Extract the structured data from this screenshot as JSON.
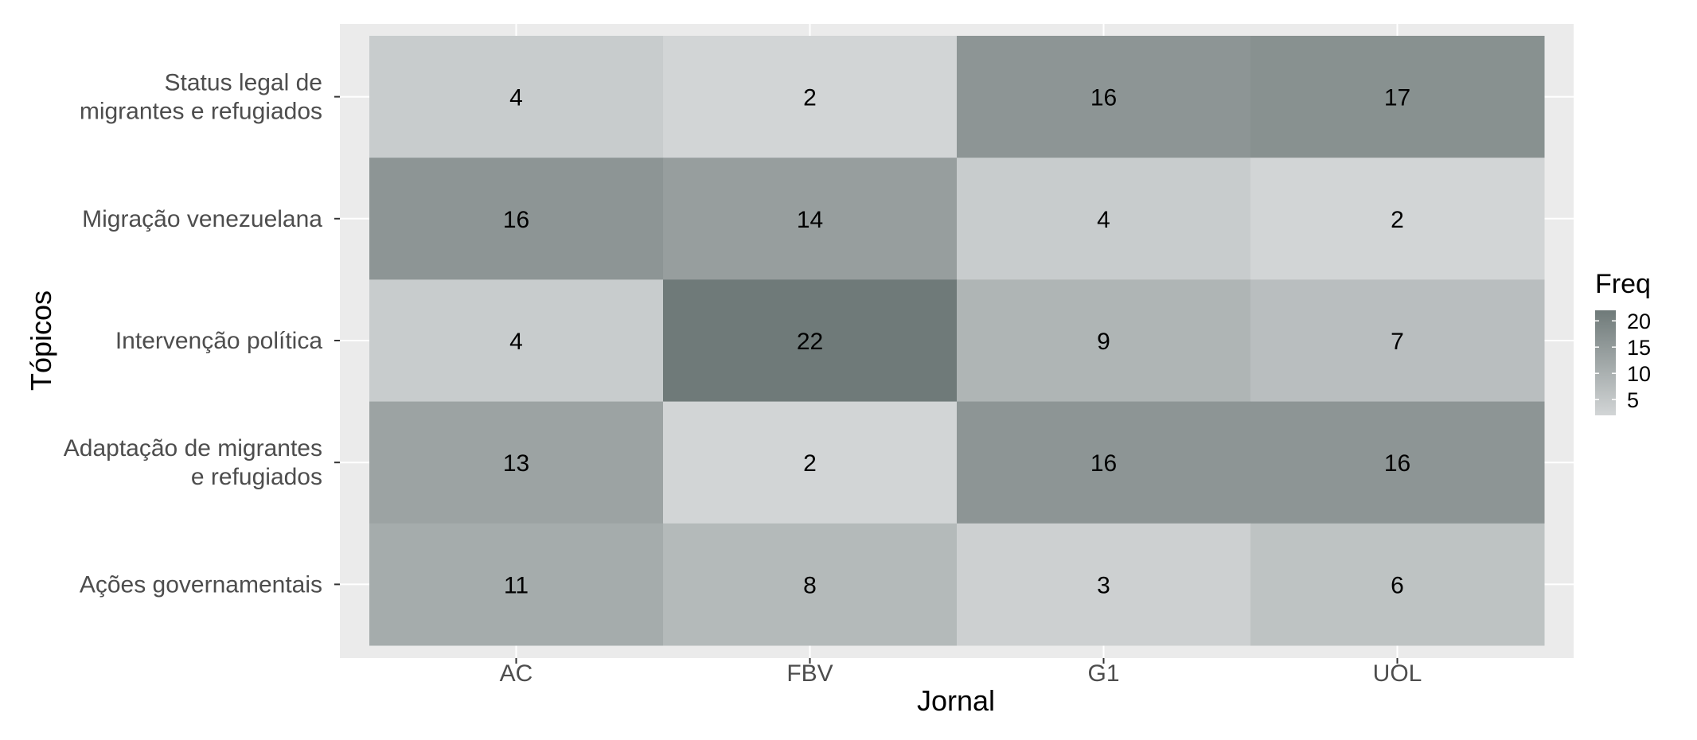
{
  "chart_data": {
    "type": "heatmap",
    "xlabel": "Jornal",
    "ylabel": "Tópicos",
    "x_categories": [
      "AC",
      "FBV",
      "G1",
      "UOL"
    ],
    "y_categories": [
      [
        "Status legal de",
        "migrantes e refugiados"
      ],
      [
        "Migração venezuelana"
      ],
      [
        "Intervenção política"
      ],
      [
        "Adaptação de migrantes",
        "e refugiados"
      ],
      [
        "Ações governamentais"
      ]
    ],
    "values": [
      [
        4,
        2,
        16,
        17
      ],
      [
        16,
        14,
        4,
        2
      ],
      [
        4,
        22,
        9,
        7
      ],
      [
        13,
        2,
        16,
        16
      ],
      [
        11,
        8,
        3,
        6
      ]
    ],
    "legend": {
      "title": "Freq",
      "ticks": [
        20,
        15,
        10,
        5
      ],
      "range": [
        2,
        22
      ],
      "low_color": "#d2d5d6",
      "high_color": "#6f7a79"
    },
    "panel_background": "#ebebeb",
    "grid": true
  }
}
